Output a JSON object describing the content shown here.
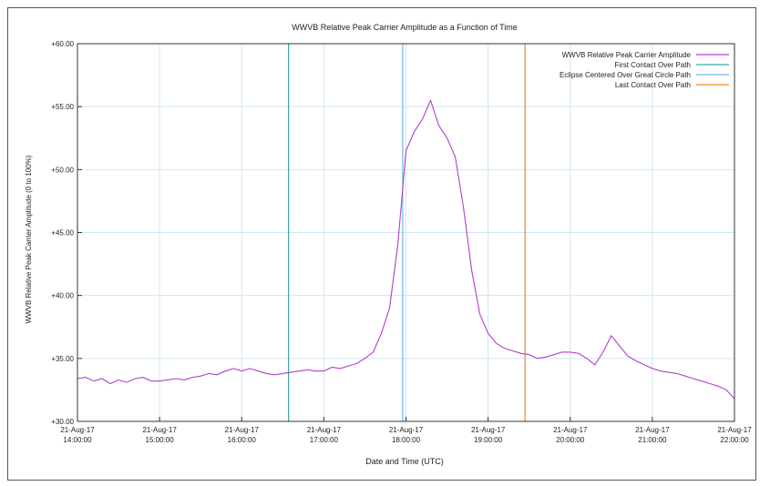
{
  "chart_data": {
    "type": "line",
    "title": "WWVB Relative Peak Carrier Amplitude as a Function of Time",
    "xlabel": "Date and Time (UTC)",
    "ylabel": "WWVB Relative Peak Carrier Amplitude (0 to 100%)",
    "ylim": [
      30,
      60
    ],
    "xlim_hours": [
      14,
      22
    ],
    "y_ticks": [
      "+30.00",
      "+35.00",
      "+40.00",
      "+45.00",
      "+50.00",
      "+55.00",
      "+60.00"
    ],
    "x_ticks": [
      {
        "date": "21-Aug-17",
        "time": "14:00:00"
      },
      {
        "date": "21-Aug-17",
        "time": "15:00:00"
      },
      {
        "date": "21-Aug-17",
        "time": "16:00:00"
      },
      {
        "date": "21-Aug-17",
        "time": "17:00:00"
      },
      {
        "date": "21-Aug-17",
        "time": "18:00:00"
      },
      {
        "date": "21-Aug-17",
        "time": "19:00:00"
      },
      {
        "date": "21-Aug-17",
        "time": "20:00:00"
      },
      {
        "date": "21-Aug-17",
        "time": "21:00:00"
      },
      {
        "date": "21-Aug-17",
        "time": "22:00:00"
      }
    ],
    "grid": true,
    "legend_position": "top-right",
    "series": [
      {
        "name": "WWVB Relative Peak Carrier Amplitude",
        "color": "#b040c8",
        "x_hours": [
          14.0,
          14.1,
          14.2,
          14.3,
          14.4,
          14.5,
          14.6,
          14.7,
          14.8,
          14.9,
          15.0,
          15.1,
          15.2,
          15.3,
          15.4,
          15.5,
          15.6,
          15.7,
          15.8,
          15.9,
          16.0,
          16.1,
          16.2,
          16.3,
          16.4,
          16.5,
          16.6,
          16.7,
          16.8,
          16.9,
          17.0,
          17.1,
          17.2,
          17.3,
          17.4,
          17.5,
          17.6,
          17.7,
          17.8,
          17.9,
          18.0,
          18.1,
          18.2,
          18.3,
          18.4,
          18.5,
          18.6,
          18.7,
          18.8,
          18.9,
          19.0,
          19.1,
          19.2,
          19.3,
          19.4,
          19.5,
          19.6,
          19.7,
          19.8,
          19.9,
          20.0,
          20.1,
          20.2,
          20.3,
          20.4,
          20.5,
          20.6,
          20.7,
          20.8,
          20.9,
          21.0,
          21.1,
          21.2,
          21.3,
          21.4,
          21.5,
          21.6,
          21.7,
          21.8,
          21.9,
          22.0
        ],
        "values": [
          33.4,
          33.5,
          33.2,
          33.4,
          33.0,
          33.3,
          33.1,
          33.4,
          33.5,
          33.2,
          33.2,
          33.3,
          33.4,
          33.3,
          33.5,
          33.6,
          33.8,
          33.7,
          34.0,
          34.2,
          34.0,
          34.2,
          34.0,
          33.8,
          33.7,
          33.8,
          33.9,
          34.0,
          34.1,
          34.0,
          34.0,
          34.3,
          34.2,
          34.4,
          34.6,
          35.0,
          35.5,
          37.0,
          39.0,
          44.0,
          51.5,
          53.0,
          54.0,
          55.5,
          53.5,
          52.5,
          51.0,
          47.0,
          42.0,
          38.5,
          37.0,
          36.2,
          35.8,
          35.6,
          35.4,
          35.3,
          35.0,
          35.1,
          35.3,
          35.5,
          35.5,
          35.4,
          35.0,
          34.5,
          35.5,
          36.8,
          36.0,
          35.2,
          34.8,
          34.5,
          34.2,
          34.0,
          33.9,
          33.8,
          33.6,
          33.4,
          33.2,
          33.0,
          32.8,
          32.5,
          31.8
        ]
      },
      {
        "name": "First Contact Over Path",
        "color": "#3aa6a0",
        "x_hour": 16.57
      },
      {
        "name": "Eclipse Centered Over Great Circle Path",
        "color": "#6fb8ea",
        "x_hour": 17.96
      },
      {
        "name": "Last Contact Over Path",
        "color": "#f08a1c",
        "x_hour": 19.45
      }
    ]
  }
}
